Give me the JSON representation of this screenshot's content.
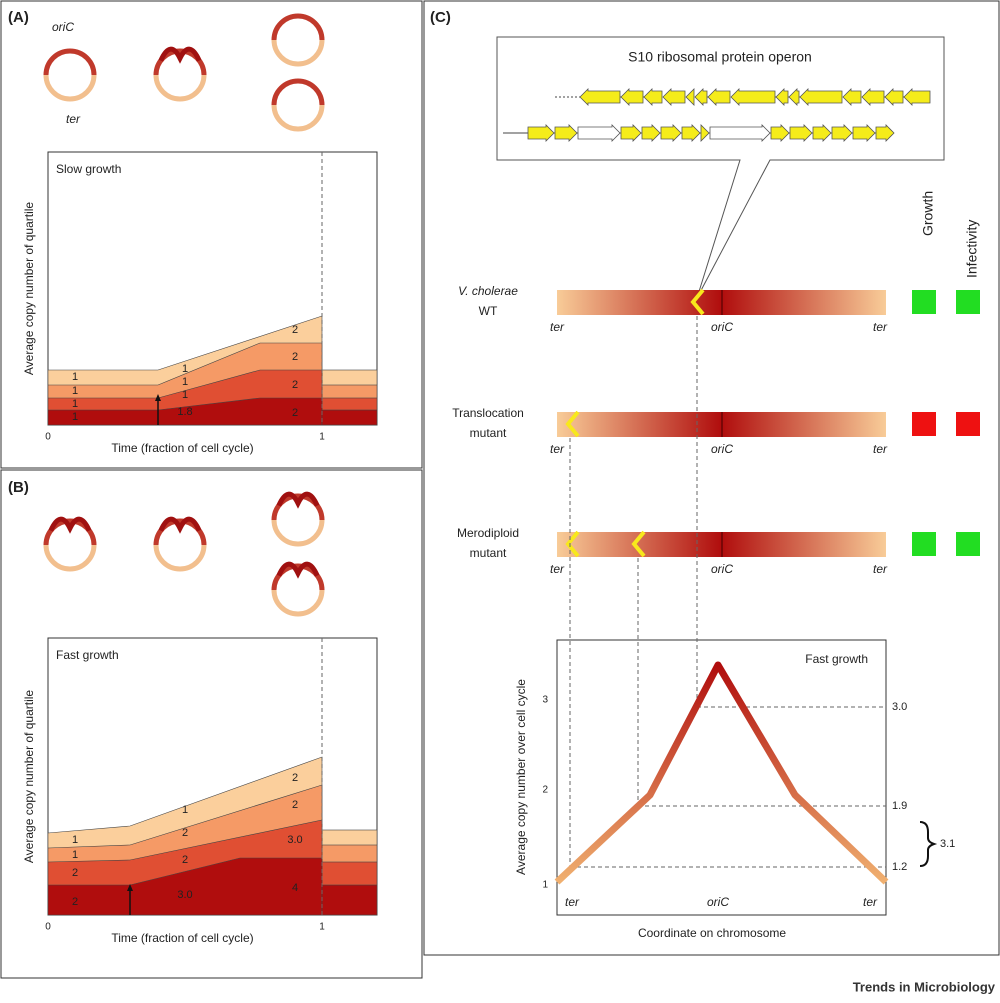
{
  "panel_a": {
    "label": "(A)",
    "origin_label": "oriC",
    "terminus_label": "ter",
    "plot": {
      "title": "Slow growth",
      "y_label": "Average copy number of quartile",
      "x_label": "Time (fraction of cell cycle)",
      "x_ticks": [
        "0",
        "1"
      ],
      "left_labels": [
        "1",
        "1",
        "1",
        "1"
      ],
      "middle_labels": [
        "1.8",
        "1",
        "1",
        "1"
      ],
      "right_labels": [
        "2",
        "2",
        "2",
        "2"
      ]
    }
  },
  "panel_b": {
    "label": "(B)",
    "plot": {
      "title": "Fast growth",
      "y_label": "Average copy number of quartile",
      "x_label": "Time (fraction of cell cycle)",
      "x_ticks": [
        "0",
        "1"
      ],
      "left_labels": [
        "2",
        "2",
        "1",
        "1"
      ],
      "middle_labels": [
        "3.0",
        "2",
        "2",
        "1"
      ],
      "right_labels": [
        "4",
        "3.0",
        "2",
        "2"
      ]
    }
  },
  "panel_c": {
    "label": "(C)",
    "operon_title": "S10 ribosomal protein operon",
    "phenotypes": [
      "Growth",
      "Infectivity"
    ],
    "strains": [
      {
        "name_line1": "V. cholerae",
        "name_line2": "WT"
      },
      {
        "name_line1": "Translocation",
        "name_line2": "mutant"
      },
      {
        "name_line1": "Merodiploid",
        "name_line2": "mutant"
      }
    ],
    "bar_labels": [
      "ter",
      "oriC",
      "ter"
    ],
    "plot": {
      "title": "Fast growth",
      "y_label": "Average copy number over cell cycle",
      "y_ticks": [
        "1",
        "2",
        "3"
      ],
      "x_labels": [
        "ter",
        "oriC",
        "ter"
      ],
      "x_label": "Coordinate on chromosome",
      "level_labels": [
        "3.0",
        "1.9",
        "1.2"
      ],
      "difference_label": "3.1"
    }
  },
  "footer": "Trends in Microbiology"
}
